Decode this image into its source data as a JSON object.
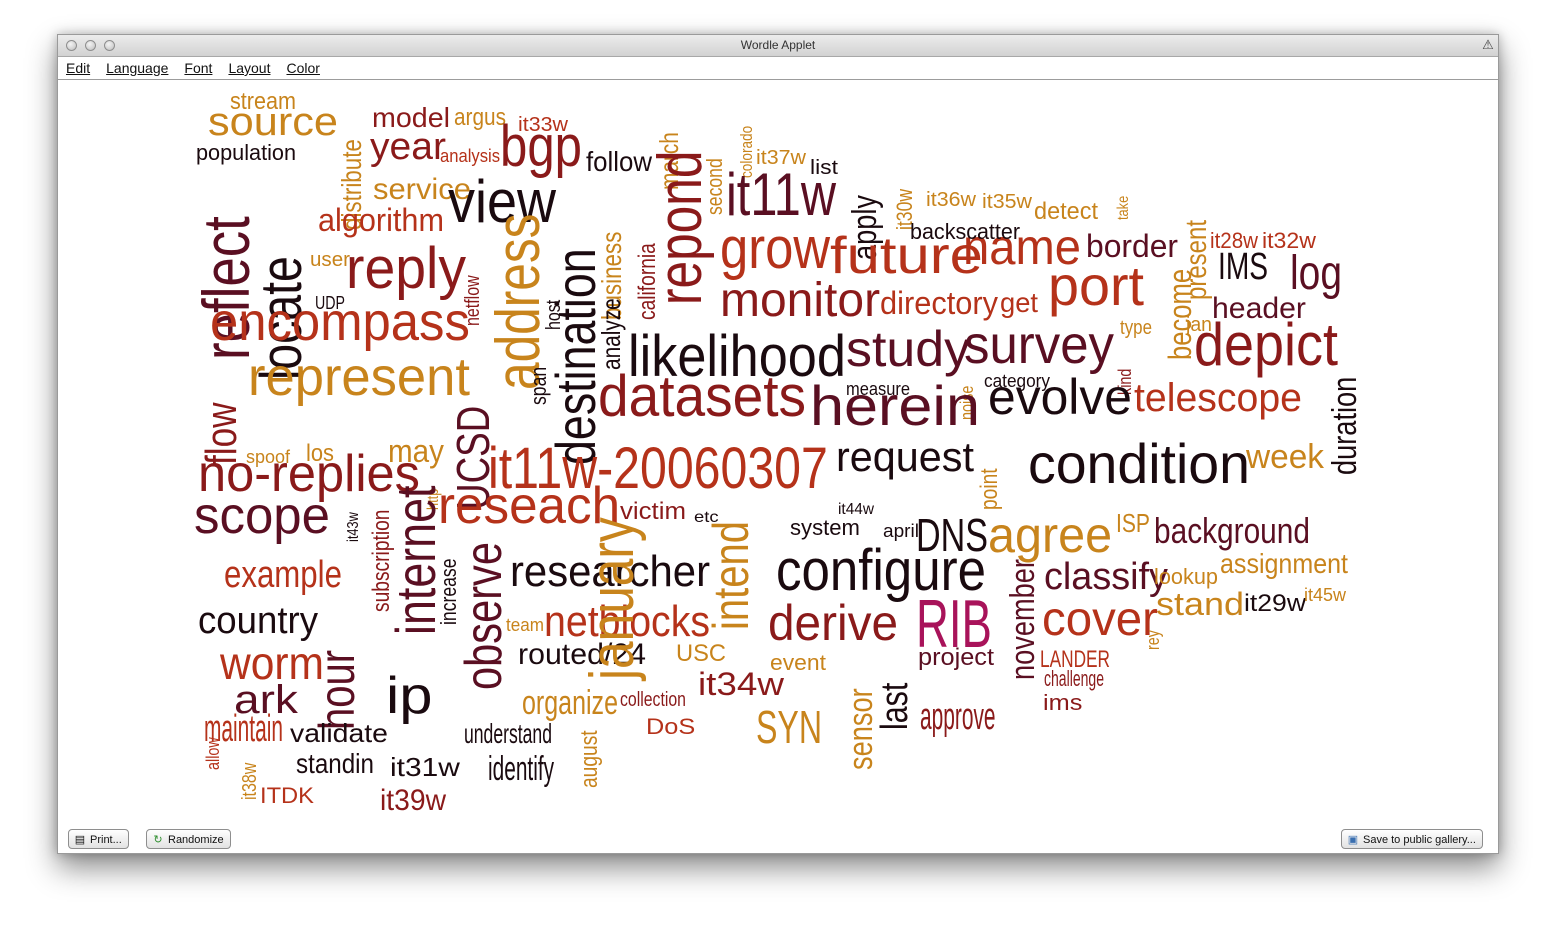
{
  "window": {
    "title": "Wordle Applet"
  },
  "menu": [
    "Edit",
    "Language",
    "Font",
    "Layout",
    "Color"
  ],
  "buttons": {
    "print": {
      "label": "Print...",
      "icon": "printer-icon"
    },
    "randomize": {
      "label": "Randomize",
      "icon": "refresh-icon"
    },
    "save": {
      "label": "Save to public gallery...",
      "icon": "save-gallery-icon"
    }
  },
  "palette": {
    "c1": "#5a0f22",
    "c2": "#8a1a1a",
    "c3": "#b5321a",
    "c4": "#c8841c",
    "c5": "#1a0a0f",
    "c6": "#a8135a"
  },
  "words": [
    {
      "t": "stream",
      "c": "#c8841c"
    },
    {
      "t": "source",
      "c": "#c8841c"
    },
    {
      "t": "population",
      "c": "#1a0a0f"
    },
    {
      "t": "reflect",
      "c": "#5a0f22"
    },
    {
      "t": "locate",
      "c": "#1a0a0f"
    },
    {
      "t": "distribute",
      "c": "#c8841c"
    },
    {
      "t": "model",
      "c": "#8a1a1a"
    },
    {
      "t": "argus",
      "c": "#c8841c"
    },
    {
      "t": "it33w",
      "c": "#b5321a"
    },
    {
      "t": "year",
      "c": "#8a1a1a"
    },
    {
      "t": "analysis",
      "c": "#b5321a"
    },
    {
      "t": "bgp",
      "c": "#8a1a1a"
    },
    {
      "t": "follow",
      "c": "#1a0a0f"
    },
    {
      "t": "march",
      "c": "#c8841c"
    },
    {
      "t": "second",
      "c": "#c8841c"
    },
    {
      "t": "colorado",
      "c": "#c8841c"
    },
    {
      "t": "it37w",
      "c": "#c8841c"
    },
    {
      "t": "list",
      "c": "#1a0a0f"
    },
    {
      "t": "service",
      "c": "#c8841c"
    },
    {
      "t": "view",
      "c": "#1a0a0f"
    },
    {
      "t": "algorithm",
      "c": "#b5321a"
    },
    {
      "t": "destination",
      "c": "#1a0a0f"
    },
    {
      "t": "repond",
      "c": "#8a1a1a"
    },
    {
      "t": "it11w",
      "c": "#5a0f22"
    },
    {
      "t": "apply",
      "c": "#1a0a0f"
    },
    {
      "t": "it30w",
      "c": "#c8841c"
    },
    {
      "t": "it36w",
      "c": "#c8841c"
    },
    {
      "t": "it35w",
      "c": "#c8841c"
    },
    {
      "t": "detect",
      "c": "#c8841c"
    },
    {
      "t": "take",
      "c": "#c8841c"
    },
    {
      "t": "business",
      "c": "#c8841c"
    },
    {
      "t": "california",
      "c": "#8a1a1a"
    },
    {
      "t": "grow",
      "c": "#b5321a"
    },
    {
      "t": "future",
      "c": "#b5321a"
    },
    {
      "t": "name",
      "c": "#b5321a"
    },
    {
      "t": "backscatter",
      "c": "#1a0a0f"
    },
    {
      "t": "border",
      "c": "#5a0f22"
    },
    {
      "t": "present",
      "c": "#c8841c"
    },
    {
      "t": "it28w",
      "c": "#b5321a"
    },
    {
      "t": "it32w",
      "c": "#b5321a"
    },
    {
      "t": "user",
      "c": "#c8841c"
    },
    {
      "t": "reply",
      "c": "#8a1a1a"
    },
    {
      "t": "netflow",
      "c": "#8a1a1a"
    },
    {
      "t": "address",
      "c": "#c8841c"
    },
    {
      "t": "UDP",
      "c": "#1a0a0f"
    },
    {
      "t": "analyze",
      "c": "#1a0a0f"
    },
    {
      "t": "monitor",
      "c": "#8a1a1a"
    },
    {
      "t": "directory",
      "c": "#b5321a"
    },
    {
      "t": "get",
      "c": "#b5321a"
    },
    {
      "t": "port",
      "c": "#b5321a"
    },
    {
      "t": "IMS",
      "c": "#1a0a0f"
    },
    {
      "t": "log",
      "c": "#5a0f22"
    },
    {
      "t": "encompass",
      "c": "#b5321a"
    },
    {
      "t": "host",
      "c": "#1a0a0f"
    },
    {
      "t": "header",
      "c": "#5a0f22"
    },
    {
      "t": "become",
      "c": "#c8841c"
    },
    {
      "t": "jan",
      "c": "#c8841c"
    },
    {
      "t": "likelihood",
      "c": "#1a0a0f"
    },
    {
      "t": "study",
      "c": "#5a0f22"
    },
    {
      "t": "survey",
      "c": "#5a0f22"
    },
    {
      "t": "type",
      "c": "#c8841c"
    },
    {
      "t": "depict",
      "c": "#8a1a1a"
    },
    {
      "t": "represent",
      "c": "#c8841c"
    },
    {
      "t": "span",
      "c": "#1a0a0f"
    },
    {
      "t": "measure",
      "c": "#1a0a0f"
    },
    {
      "t": "noise",
      "c": "#c8841c"
    },
    {
      "t": "category",
      "c": "#1a0a0f"
    },
    {
      "t": "kind",
      "c": "#8a1a1a"
    },
    {
      "t": "flow",
      "c": "#8a1a1a"
    },
    {
      "t": "datasets",
      "c": "#8a1a1a"
    },
    {
      "t": "herein",
      "c": "#5a0f22"
    },
    {
      "t": "evolve",
      "c": "#1a0a0f"
    },
    {
      "t": "telescope",
      "c": "#b5321a"
    },
    {
      "t": "duration",
      "c": "#1a0a0f"
    },
    {
      "t": "spoof",
      "c": "#c8841c"
    },
    {
      "t": "los",
      "c": "#c8841c"
    },
    {
      "t": "may",
      "c": "#c8841c"
    },
    {
      "t": "no-replies",
      "c": "#8a1a1a"
    },
    {
      "t": "UCSD",
      "c": "#5a0f22"
    },
    {
      "t": "http",
      "c": "#c8841c"
    },
    {
      "t": "point",
      "c": "#c8841c"
    },
    {
      "t": "it11w-20060307",
      "c": "#b5321a"
    },
    {
      "t": "request",
      "c": "#1a0a0f"
    },
    {
      "t": "condition",
      "c": "#1a0a0f"
    },
    {
      "t": "week",
      "c": "#c8841c"
    },
    {
      "t": "scope",
      "c": "#5a0f22"
    },
    {
      "t": "it43w",
      "c": "#1a0a0f"
    },
    {
      "t": "internet",
      "c": "#5a0f22"
    },
    {
      "t": "subscription",
      "c": "#8a1a1a"
    },
    {
      "t": "reseach",
      "c": "#b5321a"
    },
    {
      "t": "victim",
      "c": "#8a1a1a"
    },
    {
      "t": "etc",
      "c": "#1a0a0f"
    },
    {
      "t": "intend",
      "c": "#c8841c"
    },
    {
      "t": "it44w",
      "c": "#1a0a0f"
    },
    {
      "t": "system",
      "c": "#1a0a0f"
    },
    {
      "t": "april",
      "c": "#1a0a0f"
    },
    {
      "t": "DNS",
      "c": "#1a0a0f"
    },
    {
      "t": "agree",
      "c": "#c8841c"
    },
    {
      "t": "ISP",
      "c": "#c8841c"
    },
    {
      "t": "background",
      "c": "#5a0f22"
    },
    {
      "t": "example",
      "c": "#b5321a"
    },
    {
      "t": "increase",
      "c": "#1a0a0f"
    },
    {
      "t": "observe",
      "c": "#5a0f22"
    },
    {
      "t": "researcher",
      "c": "#1a0a0f"
    },
    {
      "t": "configure",
      "c": "#1a0a0f"
    },
    {
      "t": "november",
      "c": "#5a0f22"
    },
    {
      "t": "classify",
      "c": "#5a0f22"
    },
    {
      "t": "lookup",
      "c": "#c8841c"
    },
    {
      "t": "assignment",
      "c": "#c8841c"
    },
    {
      "t": "country",
      "c": "#1a0a0f"
    },
    {
      "t": "team",
      "c": "#c8841c"
    },
    {
      "t": "netblocks",
      "c": "#b5321a"
    },
    {
      "t": "derive",
      "c": "#8a1a1a"
    },
    {
      "t": "RIB",
      "c": "#a8135a"
    },
    {
      "t": "cover",
      "c": "#b5321a"
    },
    {
      "t": "stand",
      "c": "#c8841c"
    },
    {
      "t": "it29w",
      "c": "#1a0a0f"
    },
    {
      "t": "it45w",
      "c": "#c8841c"
    },
    {
      "t": "rey",
      "c": "#c8841c"
    },
    {
      "t": "worm",
      "c": "#b5321a"
    },
    {
      "t": "hour",
      "c": "#5a0f22"
    },
    {
      "t": "routed/24",
      "c": "#1a0a0f"
    },
    {
      "t": "USC",
      "c": "#c8841c"
    },
    {
      "t": "event",
      "c": "#c8841c"
    },
    {
      "t": "sensor",
      "c": "#c8841c"
    },
    {
      "t": "last",
      "c": "#1a0a0f"
    },
    {
      "t": "project",
      "c": "#5a0f22"
    },
    {
      "t": "LANDER",
      "c": "#b5321a"
    },
    {
      "t": "challenge",
      "c": "#8a1a1a"
    },
    {
      "t": "allow",
      "c": "#b5321a"
    },
    {
      "t": "ark",
      "c": "#5a0f22"
    },
    {
      "t": "ip",
      "c": "#1a0a0f"
    },
    {
      "t": "january",
      "c": "#c8841c"
    },
    {
      "t": "organize",
      "c": "#c8841c"
    },
    {
      "t": "collection",
      "c": "#8a1a1a"
    },
    {
      "t": "it34w",
      "c": "#8a1a1a"
    },
    {
      "t": "ims",
      "c": "#8a1a1a"
    },
    {
      "t": "maintain",
      "c": "#b5321a"
    },
    {
      "t": "validate",
      "c": "#1a0a0f"
    },
    {
      "t": "understand",
      "c": "#1a0a0f"
    },
    {
      "t": "DoS",
      "c": "#b5321a"
    },
    {
      "t": "SYN",
      "c": "#c8841c"
    },
    {
      "t": "approve",
      "c": "#8a1a1a"
    },
    {
      "t": "august",
      "c": "#c8841c"
    },
    {
      "t": "standin",
      "c": "#1a0a0f"
    },
    {
      "t": "it31w",
      "c": "#1a0a0f"
    },
    {
      "t": "identify",
      "c": "#1a0a0f"
    },
    {
      "t": "it38w",
      "c": "#c8841c"
    },
    {
      "t": "ITDK",
      "c": "#b5321a"
    },
    {
      "t": "it39w",
      "c": "#8a1a1a"
    }
  ]
}
